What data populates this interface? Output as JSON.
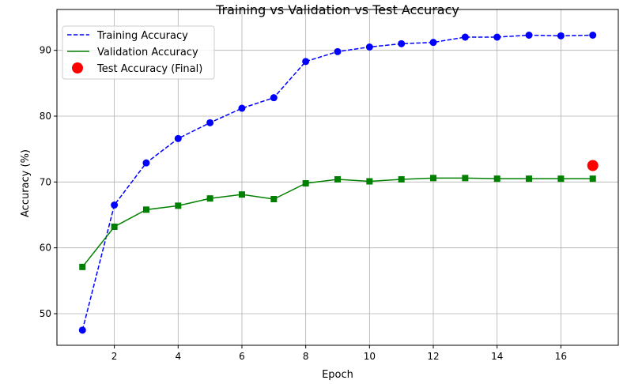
{
  "chart_data": {
    "type": "line",
    "title": "Training vs Validation vs Test Accuracy",
    "xlabel": "Epoch",
    "ylabel": "Accuracy (%)",
    "xlim": [
      0.2,
      17.8
    ],
    "ylim": [
      45.2,
      96.2
    ],
    "xticks": [
      2,
      4,
      6,
      8,
      10,
      12,
      14,
      16
    ],
    "yticks": [
      50,
      60,
      70,
      80,
      90
    ],
    "grid": true,
    "legend_position": "top-left",
    "x": [
      1,
      2,
      3,
      4,
      5,
      6,
      7,
      8,
      9,
      10,
      11,
      12,
      13,
      14,
      15,
      16,
      17
    ],
    "series": [
      {
        "name": "Training Accuracy",
        "color": "#0000ff",
        "style": "dashed",
        "marker": "circle",
        "values": [
          47.5,
          66.5,
          72.9,
          76.6,
          79.0,
          81.2,
          82.8,
          88.3,
          89.8,
          90.5,
          91.0,
          91.2,
          92.0,
          92.0,
          92.3,
          92.2,
          92.3
        ]
      },
      {
        "name": "Validation Accuracy",
        "color": "#008000",
        "style": "solid",
        "marker": "square",
        "values": [
          57.1,
          63.2,
          65.8,
          66.4,
          67.5,
          68.1,
          67.4,
          69.8,
          70.4,
          70.1,
          70.4,
          70.6,
          70.6,
          70.5,
          70.5,
          70.5,
          70.5
        ]
      }
    ],
    "points": [
      {
        "name": "Test Accuracy (Final)",
        "color": "#ff0000",
        "x": 17,
        "y": 72.5
      }
    ]
  }
}
